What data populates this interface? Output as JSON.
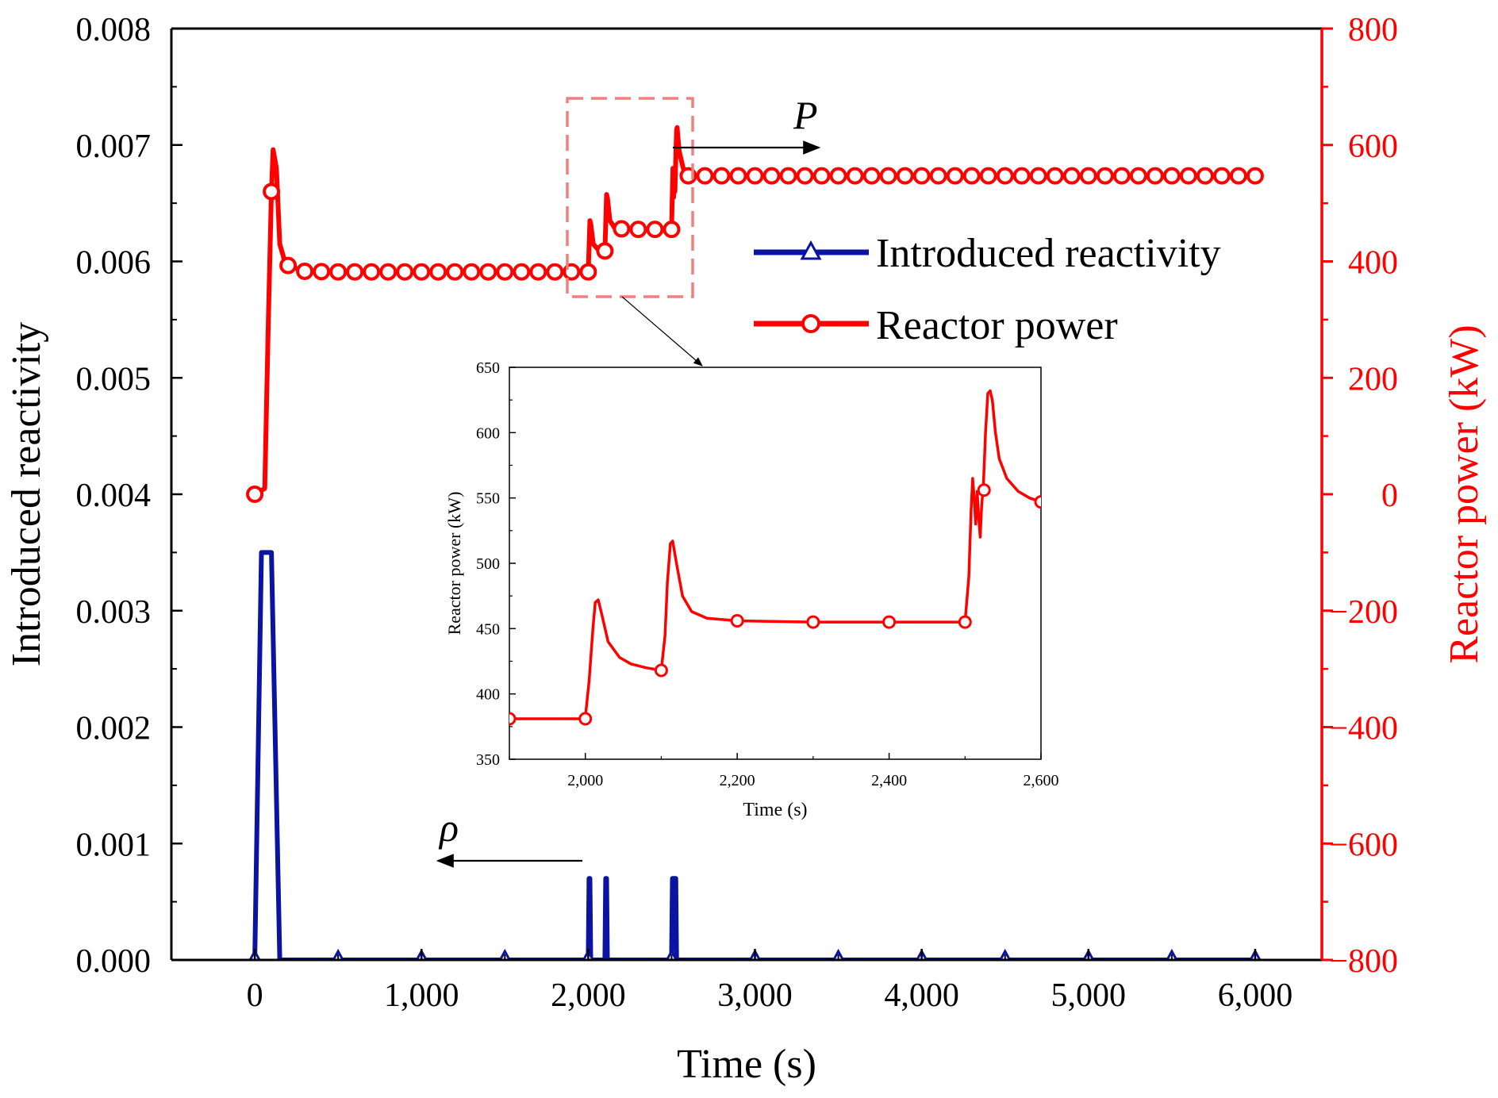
{
  "chart_data": {
    "type": "line",
    "title": "",
    "xlabel": "Time (s)",
    "ylabel_left": "Introduced reactivity",
    "ylabel_right": "Reactor power (kW)",
    "xlim": [
      -500,
      6400
    ],
    "ylim_left": [
      0,
      0.008
    ],
    "ylim_right": [
      -800,
      800
    ],
    "x_ticks": [
      {
        "value": 0,
        "label": "0"
      },
      {
        "value": 1000,
        "label": "1,000"
      },
      {
        "value": 2000,
        "label": "2,000"
      },
      {
        "value": 3000,
        "label": "3,000"
      },
      {
        "value": 4000,
        "label": "4,000"
      },
      {
        "value": 5000,
        "label": "5,000"
      },
      {
        "value": 6000,
        "label": "6,000"
      }
    ],
    "y_left_ticks": [
      {
        "value": 0,
        "label": "0.000"
      },
      {
        "value": 0.001,
        "label": "0.001"
      },
      {
        "value": 0.002,
        "label": "0.002"
      },
      {
        "value": 0.003,
        "label": "0.003"
      },
      {
        "value": 0.004,
        "label": "0.004"
      },
      {
        "value": 0.005,
        "label": "0.005"
      },
      {
        "value": 0.006,
        "label": "0.006"
      },
      {
        "value": 0.007,
        "label": "0.007"
      },
      {
        "value": 0.008,
        "label": "0.008"
      }
    ],
    "y_right_ticks": [
      {
        "value": -800,
        "label": "−800"
      },
      {
        "value": -600,
        "label": "−600"
      },
      {
        "value": -400,
        "label": "−400"
      },
      {
        "value": -200,
        "label": "−200"
      },
      {
        "value": 0,
        "label": "0"
      },
      {
        "value": 200,
        "label": "200"
      },
      {
        "value": 400,
        "label": "400"
      },
      {
        "value": 600,
        "label": "600"
      },
      {
        "value": 800,
        "label": "800"
      }
    ],
    "legend": {
      "position": "center-right",
      "entries": [
        {
          "label": "Introduced reactivity",
          "marker": "triangle",
          "color": "#0a14a0"
        },
        {
          "label": "Reactor power",
          "marker": "circle",
          "color": "#ff0000"
        }
      ]
    },
    "annotations": [
      {
        "text": "P",
        "italic": true,
        "arrow": "right",
        "series": "Reactor power"
      },
      {
        "text": "ρ",
        "italic": true,
        "arrow": "left",
        "series": "Introduced reactivity"
      }
    ],
    "series": [
      {
        "name": "Introduced reactivity",
        "axis": "left",
        "color": "#0a14a0",
        "marker": "triangle",
        "x": [
          0,
          40,
          50,
          90,
          100,
          150,
          500,
          1000,
          1500,
          1990,
          2000,
          2005,
          2010,
          2015,
          2090,
          2100,
          2105,
          2110,
          2115,
          2490,
          2500,
          2505,
          2520,
          2525,
          2530,
          3000,
          3500,
          4000,
          4500,
          5000,
          5500,
          6000
        ],
        "y": [
          0,
          0.0035,
          0.0035,
          0.0035,
          0.0035,
          0,
          0,
          0,
          0,
          0,
          0,
          0.0007,
          0.0007,
          0,
          0,
          0,
          0.0007,
          0.0007,
          0,
          0,
          0,
          0.0007,
          0.0007,
          0.0007,
          0,
          0,
          0,
          0,
          0,
          0,
          0,
          0
        ],
        "marker_x": [
          0,
          500,
          1000,
          1500,
          2000,
          2500,
          3000,
          3500,
          4000,
          4500,
          5000,
          5500,
          6000
        ]
      },
      {
        "name": "Reactor power",
        "axis": "right",
        "color": "#ff0000",
        "marker": "circle",
        "x": [
          0,
          60,
          80,
          100,
          110,
          130,
          150,
          180,
          200,
          300,
          500,
          1000,
          1500,
          1990,
          2000,
          2010,
          2015,
          2030,
          2060,
          2100,
          2110,
          2115,
          2130,
          2160,
          2200,
          2300,
          2400,
          2500,
          2508,
          2512,
          2516,
          2520,
          2530,
          2533,
          2545,
          2570,
          2600,
          3000,
          4000,
          5000,
          6000
        ],
        "y": [
          0,
          10,
          280,
          520,
          592,
          560,
          430,
          400,
          393,
          383,
          382,
          382,
          382,
          382,
          382,
          470,
          465,
          430,
          420,
          418,
          515,
          510,
          470,
          457,
          456,
          455,
          455,
          455,
          560,
          510,
          550,
          520,
          625,
          630,
          590,
          560,
          547,
          547,
          547,
          547,
          547
        ],
        "marker_x": [
          0,
          100,
          200,
          300,
          400,
          500,
          600,
          700,
          800,
          900,
          1000,
          1100,
          1200,
          1300,
          1400,
          1500,
          1600,
          1700,
          1800,
          1900,
          2000,
          2100,
          2200,
          2300,
          2400,
          2500,
          2600,
          2700,
          2800,
          2900,
          3000,
          3100,
          3200,
          3300,
          3400,
          3500,
          3600,
          3700,
          3800,
          3900,
          4000,
          4100,
          4200,
          4300,
          4400,
          4500,
          4600,
          4700,
          4800,
          4900,
          5000,
          5100,
          5200,
          5300,
          5400,
          5500,
          5600,
          5700,
          5800,
          5900,
          6000
        ]
      }
    ],
    "inset": {
      "type": "line",
      "xlabel": "Time (s)",
      "ylabel": "Reactor power (kW)",
      "xlim": [
        1900,
        2600
      ],
      "ylim": [
        350,
        650
      ],
      "x_ticks": [
        {
          "value": 2000,
          "label": "2,000"
        },
        {
          "value": 2200,
          "label": "2,200"
        },
        {
          "value": 2400,
          "label": "2,400"
        },
        {
          "value": 2600,
          "label": "2,600"
        }
      ],
      "y_ticks": [
        {
          "value": 350,
          "label": "350"
        },
        {
          "value": 400,
          "label": "400"
        },
        {
          "value": 450,
          "label": "450"
        },
        {
          "value": 500,
          "label": "500"
        },
        {
          "value": 550,
          "label": "550"
        },
        {
          "value": 600,
          "label": "600"
        },
        {
          "value": 650,
          "label": "650"
        }
      ],
      "series": [
        {
          "name": "Reactor power",
          "color": "#ff0000",
          "x": [
            1900,
            1995,
            2000,
            2005,
            2010,
            2013,
            2017,
            2022,
            2030,
            2045,
            2060,
            2080,
            2100,
            2105,
            2108,
            2112,
            2115,
            2120,
            2128,
            2140,
            2160,
            2200,
            2300,
            2400,
            2500,
            2505,
            2508,
            2510,
            2512,
            2514,
            2516,
            2518,
            2520,
            2522,
            2524,
            2527,
            2530,
            2533,
            2536,
            2540,
            2545,
            2555,
            2570,
            2585,
            2600
          ],
          "y": [
            381,
            381,
            382,
            410,
            450,
            470,
            472,
            460,
            440,
            428,
            423,
            420,
            418,
            445,
            485,
            515,
            517,
            500,
            475,
            463,
            458,
            456,
            455,
            455,
            455,
            490,
            540,
            565,
            550,
            530,
            555,
            535,
            520,
            545,
            558,
            600,
            630,
            632,
            625,
            600,
            580,
            565,
            555,
            550,
            547
          ],
          "marker_x": [
            1900,
            2000,
            2100,
            2200,
            2300,
            2400,
            2500,
            2525,
            2600
          ],
          "marker_y": [
            381,
            381,
            418,
            456,
            455,
            455,
            455,
            556,
            547
          ]
        }
      ]
    }
  }
}
